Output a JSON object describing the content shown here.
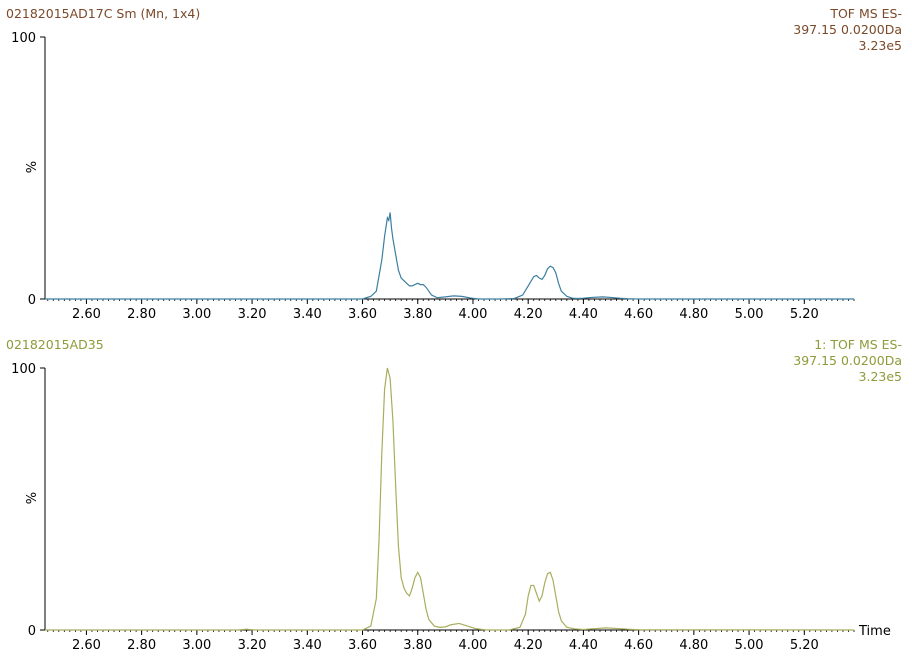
{
  "chart_data": [
    {
      "type": "line",
      "title": "02182015AD17C Sm (Mn, 1x4)",
      "info": [
        "TOF MS ES-",
        "397.15 0.0200Da",
        "3.23e5"
      ],
      "color": "#3c7fa0",
      "title_color": "#7a4a2a",
      "ylabel": "%",
      "xlabel": "",
      "xlim": [
        2.45,
        5.38
      ],
      "ylim": [
        0,
        100
      ],
      "y_ticks": [
        "0",
        "100"
      ],
      "x_ticks": [
        "2.60",
        "2.80",
        "3.00",
        "3.20",
        "3.40",
        "3.60",
        "3.80",
        "4.00",
        "4.20",
        "4.40",
        "4.60",
        "4.80",
        "5.00",
        "5.20"
      ],
      "series": [
        {
          "x": [
            2.45,
            3.6,
            3.63,
            3.65,
            3.67,
            3.68,
            3.69,
            3.695,
            3.7,
            3.705,
            3.71,
            3.72,
            3.73,
            3.74,
            3.75,
            3.76,
            3.77,
            3.78,
            3.79,
            3.8,
            3.81,
            3.82,
            3.83,
            3.85,
            3.87,
            3.9,
            3.93,
            3.96,
            3.99,
            4.02,
            4.1,
            4.15,
            4.18,
            4.2,
            4.22,
            4.23,
            4.24,
            4.25,
            4.26,
            4.27,
            4.28,
            4.29,
            4.3,
            4.31,
            4.32,
            4.34,
            4.36,
            4.38,
            4.4,
            4.43,
            4.47,
            4.5,
            4.53,
            4.56,
            4.6,
            5.38
          ],
          "y": [
            0,
            0,
            1,
            3,
            15,
            24,
            31,
            30,
            33,
            27,
            23,
            17,
            11,
            8,
            7,
            6,
            5,
            5,
            5.5,
            6,
            5.5,
            5.5,
            4.5,
            1.5,
            0.5,
            0.8,
            1.2,
            1,
            0.4,
            0,
            0,
            0.2,
            1.5,
            5,
            8.5,
            9,
            8,
            7.5,
            9,
            11.5,
            12.5,
            12,
            10,
            6,
            3,
            1,
            0.3,
            0.2,
            0.3,
            0.6,
            0.8,
            0.6,
            0.3,
            0.1,
            0,
            0
          ]
        }
      ]
    },
    {
      "type": "line",
      "title": "02182015AD35",
      "info": [
        "1: TOF MS ES-",
        "397.15 0.0200Da",
        "3.23e5"
      ],
      "color": "#a9ad5c",
      "title_color": "#8f9a3a",
      "ylabel": "%",
      "xlabel": "Time",
      "xlim": [
        2.45,
        5.38
      ],
      "ylim": [
        0,
        100
      ],
      "y_ticks": [
        "0",
        "100"
      ],
      "x_ticks": [
        "2.60",
        "2.80",
        "3.00",
        "3.20",
        "3.40",
        "3.60",
        "3.80",
        "4.00",
        "4.20",
        "4.40",
        "4.60",
        "4.80",
        "5.00",
        "5.20"
      ],
      "series": [
        {
          "x": [
            2.45,
            3.15,
            3.18,
            3.21,
            3.6,
            3.63,
            3.65,
            3.66,
            3.67,
            3.68,
            3.69,
            3.7,
            3.71,
            3.72,
            3.73,
            3.74,
            3.75,
            3.76,
            3.77,
            3.78,
            3.79,
            3.8,
            3.81,
            3.82,
            3.83,
            3.84,
            3.86,
            3.88,
            3.9,
            3.92,
            3.95,
            3.98,
            4.01,
            4.05,
            4.13,
            4.17,
            4.19,
            4.2,
            4.21,
            4.22,
            4.23,
            4.24,
            4.25,
            4.26,
            4.27,
            4.28,
            4.29,
            4.3,
            4.31,
            4.32,
            4.34,
            4.37,
            4.4,
            4.44,
            4.48,
            4.52,
            4.56,
            4.6,
            5.38
          ],
          "y": [
            0,
            0,
            0.3,
            0,
            0,
            1.5,
            12,
            35,
            68,
            92,
            100,
            96,
            80,
            55,
            32,
            20,
            16,
            14,
            13,
            16,
            20,
            22,
            20,
            14,
            8,
            4,
            1.5,
            1,
            1.2,
            2,
            2.5,
            1.5,
            0.5,
            0,
            0,
            1,
            6,
            13,
            17,
            17,
            14,
            11,
            13,
            18,
            21.5,
            22,
            19,
            13,
            7,
            3.5,
            1,
            0.4,
            0.2,
            0.5,
            0.8,
            0.6,
            0.3,
            0.1,
            0
          ]
        }
      ]
    }
  ]
}
